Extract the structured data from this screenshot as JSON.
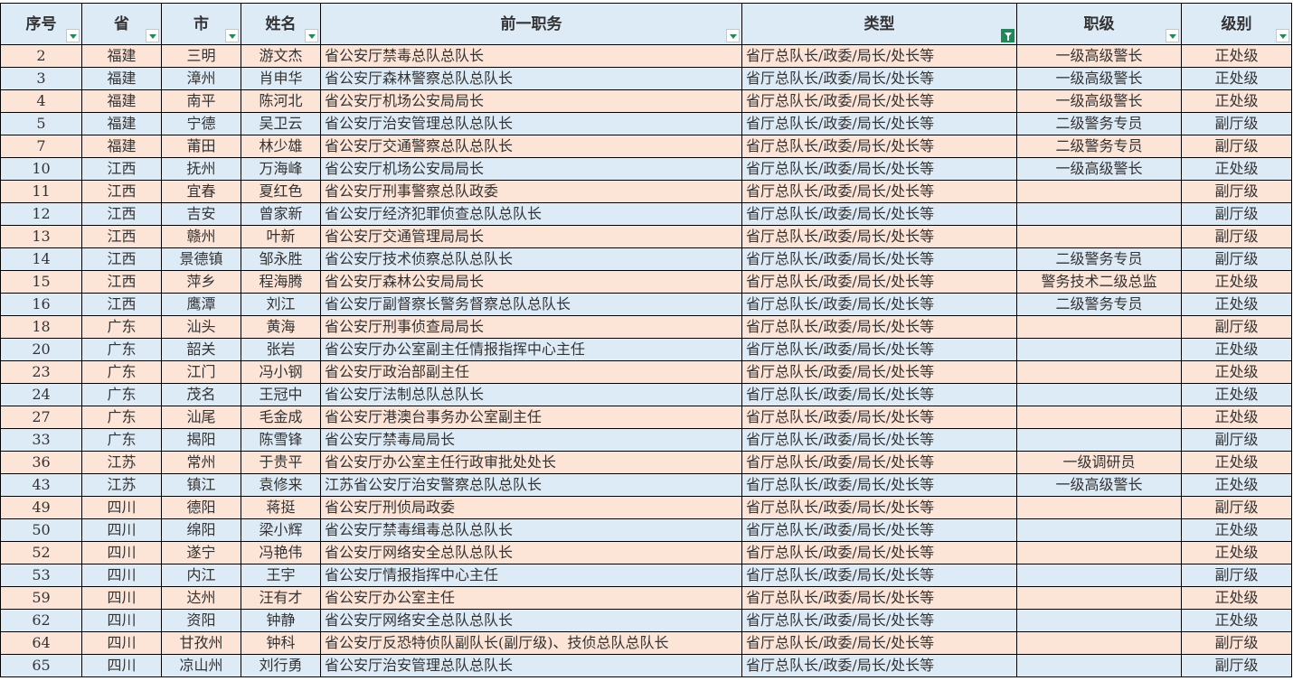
{
  "colors": {
    "header_bg": "#ddebf7",
    "row_odd": "#fce4d6",
    "row_even": "#ddebf7",
    "filter_active": "#1e8a5a"
  },
  "headers": [
    {
      "label": "序号",
      "filter": "dropdown"
    },
    {
      "label": "省",
      "filter": "dropdown"
    },
    {
      "label": "市",
      "filter": "dropdown"
    },
    {
      "label": "姓名",
      "filter": "dropdown"
    },
    {
      "label": "前一职务",
      "filter": "dropdown"
    },
    {
      "label": "类型",
      "filter": "filter-active-icon"
    },
    {
      "label": "职级",
      "filter": "dropdown"
    },
    {
      "label": "级别",
      "filter": "dropdown"
    }
  ],
  "rows": [
    [
      "2",
      "福建",
      "三明",
      "游文杰",
      "省公安厅禁毒总队总队长",
      "省厅总队长/政委/局长/处长等",
      "一级高级警长",
      "正处级"
    ],
    [
      "3",
      "福建",
      "漳州",
      "肖申华",
      "省公安厅森林警察总队总队长",
      "省厅总队长/政委/局长/处长等",
      "一级高级警长",
      "正处级"
    ],
    [
      "4",
      "福建",
      "南平",
      "陈河北",
      "省公安厅机场公安局局长",
      "省厅总队长/政委/局长/处长等",
      "一级高级警长",
      "正处级"
    ],
    [
      "5",
      "福建",
      "宁德",
      "吴卫云",
      "省公安厅治安管理总队总队长",
      "省厅总队长/政委/局长/处长等",
      "二级警务专员",
      "副厅级"
    ],
    [
      "7",
      "福建",
      "莆田",
      "林少雄",
      "省公安厅交通警察总队总队长",
      "省厅总队长/政委/局长/处长等",
      "二级警务专员",
      "副厅级"
    ],
    [
      "10",
      "江西",
      "抚州",
      "万海峰",
      "省公安厅机场公安局局长",
      "省厅总队长/政委/局长/处长等",
      "一级高级警长",
      "正处级"
    ],
    [
      "11",
      "江西",
      "宜春",
      "夏红色",
      "省公安厅刑事警察总队政委",
      "省厅总队长/政委/局长/处长等",
      "",
      "副厅级"
    ],
    [
      "12",
      "江西",
      "吉安",
      "曾家新",
      "省公安厅经济犯罪侦查总队总队长",
      "省厅总队长/政委/局长/处长等",
      "",
      "副厅级"
    ],
    [
      "13",
      "江西",
      "赣州",
      "叶新",
      "省公安厅交通管理局局长",
      "省厅总队长/政委/局长/处长等",
      "",
      "副厅级"
    ],
    [
      "14",
      "江西",
      "景德镇",
      "邹永胜",
      "省公安厅技术侦察总队总队长",
      "省厅总队长/政委/局长/处长等",
      "二级警务专员",
      "副厅级"
    ],
    [
      "15",
      "江西",
      "萍乡",
      "程海腾",
      "省公安厅森林公安局局长",
      "省厅总队长/政委/局长/处长等",
      "警务技术二级总监",
      "正处级"
    ],
    [
      "16",
      "江西",
      "鹰潭",
      "刘江",
      "省公安厅副督察长警务督察总队总队长",
      "省厅总队长/政委/局长/处长等",
      "二级警务专员",
      "正处级"
    ],
    [
      "18",
      "广东",
      "汕头",
      "黄海",
      "省公安厅刑事侦查局局长",
      "省厅总队长/政委/局长/处长等",
      "",
      "副厅级"
    ],
    [
      "20",
      "广东",
      "韶关",
      "张岩",
      "省公安厅办公室副主任情报指挥中心主任",
      "省厅总队长/政委/局长/处长等",
      "",
      "正处级"
    ],
    [
      "23",
      "广东",
      "江门",
      "冯小钢",
      "省公安厅政治部副主任",
      "省厅总队长/政委/局长/处长等",
      "",
      "正处级"
    ],
    [
      "24",
      "广东",
      "茂名",
      "王冠中",
      "省公安厅法制总队总队长",
      "省厅总队长/政委/局长/处长等",
      "",
      "正处级"
    ],
    [
      "27",
      "广东",
      "汕尾",
      "毛金成",
      "省公安厅港澳台事务办公室副主任",
      "省厅总队长/政委/局长/处长等",
      "",
      "正处级"
    ],
    [
      "33",
      "广东",
      "揭阳",
      "陈雪锋",
      "省公安厅禁毒局局长",
      "省厅总队长/政委/局长/处长等",
      "",
      "副厅级"
    ],
    [
      "36",
      "江苏",
      "常州",
      "于贵平",
      "省公安厅办公室主任行政审批处处长",
      "省厅总队长/政委/局长/处长等",
      "一级调研员",
      "正处级"
    ],
    [
      "43",
      "江苏",
      "镇江",
      "袁修来",
      "江苏省公安厅治安警察总队总队长",
      "省厅总队长/政委/局长/处长等",
      "一级高级警长",
      "正处级"
    ],
    [
      "49",
      "四川",
      "德阳",
      "蒋挺",
      "省公安厅刑侦局政委",
      "省厅总队长/政委/局长/处长等",
      "",
      "副厅级"
    ],
    [
      "50",
      "四川",
      "绵阳",
      "梁小辉",
      "省公安厅禁毒缉毒总队总队长",
      "省厅总队长/政委/局长/处长等",
      "",
      "正处级"
    ],
    [
      "52",
      "四川",
      "遂宁",
      "冯艳伟",
      "省公安厅网络安全总队总队长",
      "省厅总队长/政委/局长/处长等",
      "",
      "正处级"
    ],
    [
      "53",
      "四川",
      "内江",
      "王宇",
      "省公安厅情报指挥中心主任",
      "省厅总队长/政委/局长/处长等",
      "",
      "副厅级"
    ],
    [
      "59",
      "四川",
      "达州",
      "汪有才",
      "省公安厅办公室主任",
      "省厅总队长/政委/局长/处长等",
      "",
      "正处级"
    ],
    [
      "62",
      "四川",
      "资阳",
      "钟静",
      "省公安厅网络安全总队总队长",
      "省厅总队长/政委/局长/处长等",
      "",
      "正处级"
    ],
    [
      "64",
      "四川",
      "甘孜州",
      "钟科",
      "省公安厅反恐特侦队副队长(副厅级)、技侦总队总队长",
      "省厅总队长/政委/局长/处长等",
      "",
      "副厅级"
    ],
    [
      "65",
      "四川",
      "凉山州",
      "刘行勇",
      "省公安厅治安管理总队总队长",
      "省厅总队长/政委/局长/处长等",
      "",
      "副厅级"
    ]
  ]
}
